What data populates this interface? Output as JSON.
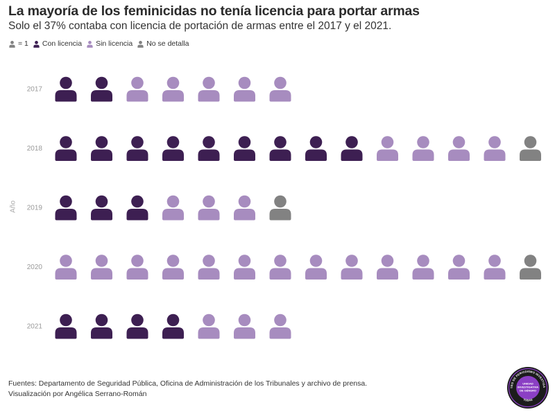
{
  "title": "La mayoría de los feminicidas no tenía licencia para portar armas",
  "subtitle": "Solo el 37% contaba con licencia de portación de armas entre el 2017 y el 2021.",
  "legend": {
    "unit_label": "= 1",
    "items": [
      {
        "label": "Con licencia",
        "color": "#3d1f52"
      },
      {
        "label": "Sin licencia",
        "color": "#a78cbf"
      },
      {
        "label": "No se detalla",
        "color": "#828282"
      }
    ]
  },
  "footer": {
    "sources": "Fuentes: Departamento de Seguridad Pública, Oficina de Administración de los Tribunales y archivo de prensa.",
    "credit": "Visualización por Angélica Serrano-Román"
  },
  "logo": {
    "text_top": "CENTRO DE PERIODISMO INVESTIGATIVO",
    "text_center_1": "UNIDAD",
    "text_center_2": "INVESTIGATIVA",
    "text_center_3": "DE GÉNERO",
    "text_bottom": "TODAS"
  },
  "chart_data": {
    "type": "pictogram",
    "ylabel": "Año",
    "unit": 1,
    "categories": [
      "2017",
      "2018",
      "2019",
      "2020",
      "2021"
    ],
    "series": [
      {
        "name": "Con licencia",
        "color": "#3d1f52",
        "values": [
          2,
          9,
          3,
          0,
          4
        ]
      },
      {
        "name": "Sin licencia",
        "color": "#a78cbf",
        "values": [
          5,
          4,
          3,
          13,
          3
        ]
      },
      {
        "name": "No se detalla",
        "color": "#828282",
        "values": [
          0,
          1,
          1,
          1,
          0
        ]
      }
    ]
  }
}
